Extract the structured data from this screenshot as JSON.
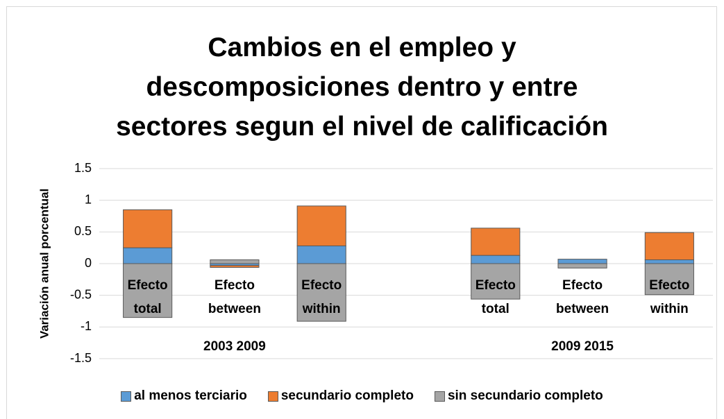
{
  "chart_data": {
    "type": "bar",
    "stacked": true,
    "title": "Cambios en el empleo y\ndescomposiciones dentro y entre\nsectores segun el nivel de calificación",
    "y_label": "Variación anual porcentual",
    "categories": [
      "Efecto\ntotal",
      "Efecto\nbetween",
      "Efecto\nwithin",
      null,
      "Efecto\ntotal",
      "Efecto\nbetween",
      "Efecto\nwithin"
    ],
    "group_labels": [
      "2003  2009",
      "2009  2015"
    ],
    "series": [
      {
        "name": "al menos terciario",
        "color": "#5b9bd5",
        "values": [
          0.25,
          -0.03,
          0.28,
          null,
          0.13,
          0.07,
          0.06
        ]
      },
      {
        "name": "secundario completo",
        "color": "#ed7d31",
        "values": [
          0.6,
          -0.03,
          0.63,
          null,
          0.43,
          0,
          0.43
        ]
      },
      {
        "name": "sin secundario completo",
        "color": "#a5a5a5",
        "values": [
          -0.85,
          0.06,
          -0.91,
          null,
          -0.56,
          -0.07,
          -0.49
        ]
      }
    ],
    "ylim": [
      -1.5,
      1.5
    ],
    "yticks": [
      -1.5,
      -1,
      -0.5,
      0,
      0.5,
      1,
      1.5
    ],
    "grid": true,
    "legend": "bottom"
  }
}
